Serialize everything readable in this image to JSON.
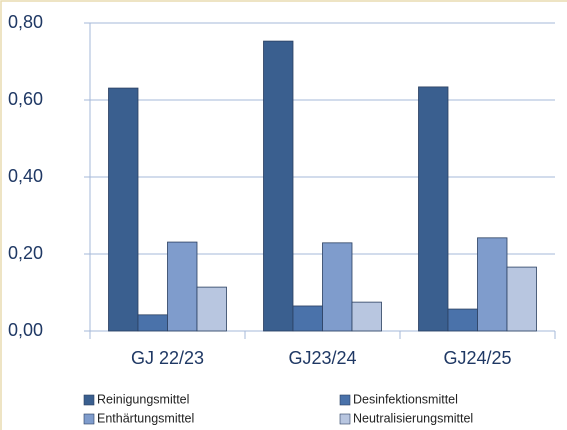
{
  "chart_data": {
    "type": "bar",
    "categories": [
      "GJ 22/23",
      "GJ23/24",
      "GJ24/25"
    ],
    "series": [
      {
        "name": "Reinigungsmittel",
        "color": "#3a5f8f",
        "values": [
          0.631,
          0.753,
          0.634
        ]
      },
      {
        "name": "Desinfektionsmittel",
        "color": "#4a72aa",
        "values": [
          0.042,
          0.065,
          0.057
        ]
      },
      {
        "name": "Enthärtungsmittel",
        "color": "#7f9ccc",
        "values": [
          0.231,
          0.229,
          0.242
        ]
      },
      {
        "name": "Neutralisierungsmittel",
        "color": "#b8c6e0",
        "values": [
          0.114,
          0.075,
          0.166
        ]
      }
    ],
    "ylim": [
      0,
      0.8
    ],
    "yticks": [
      {
        "value": 0,
        "label": "0,00"
      },
      {
        "value": 0.2,
        "label": "0,20"
      },
      {
        "value": 0.4,
        "label": "0,40"
      },
      {
        "value": 0.6,
        "label": "0,60"
      },
      {
        "value": 0.8,
        "label": "0,80"
      }
    ],
    "grid": true
  }
}
